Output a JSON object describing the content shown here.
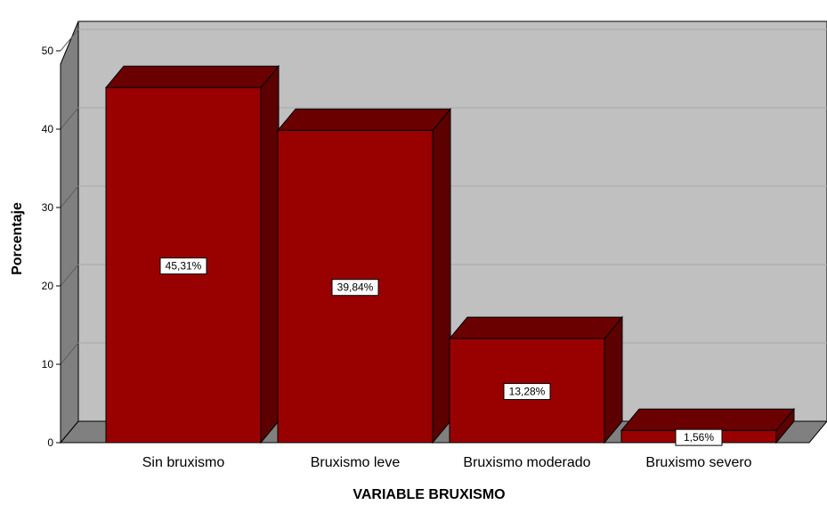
{
  "chart_data": {
    "type": "bar",
    "categories": [
      "Sin bruxismo",
      "Bruxismo leve",
      "Bruxismo moderado",
      "Bruxismo severo"
    ],
    "values": [
      45.31,
      39.84,
      13.28,
      1.56
    ],
    "data_labels": [
      "45,31%",
      "39,84%",
      "13,28%",
      "1,56%"
    ],
    "title": "",
    "xlabel": "VARIABLE BRUXISMO",
    "ylabel": "Porcentaje",
    "ylim": [
      0,
      50
    ],
    "yticks": [
      "0",
      "10",
      "20",
      "30",
      "40",
      "50"
    ],
    "grid": true,
    "style": "3d",
    "colors": {
      "bar_front": "#990000",
      "bar_top": "#6b0000",
      "bar_side": "#5c0000",
      "wall": "#c0c0c0",
      "wall_side": "#808080",
      "floor": "#808080",
      "grid": "#a8a8a8"
    }
  }
}
